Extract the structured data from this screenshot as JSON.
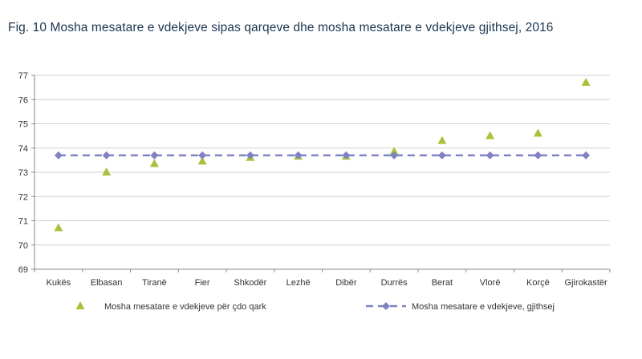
{
  "chart_data": {
    "type": "scatter",
    "title": "Fig. 10  Mosha mesatare e vdekjeve sipas qarqeve dhe mosha mesatare e vdekjeve gjithsej, 2016",
    "categories": [
      "Kukës",
      "Elbasan",
      "Tiranë",
      "Fier",
      "Shkodër",
      "Lezhë",
      "Dibër",
      "Durrës",
      "Berat",
      "Vlorë",
      "Korçë",
      "Gjirokastër"
    ],
    "ylim": [
      69,
      77
    ],
    "yticks": [
      69,
      70,
      71,
      72,
      73,
      74,
      75,
      76,
      77
    ],
    "grid": true,
    "legend_position": "bottom",
    "series": [
      {
        "name": "Mosha mesatare e vdekjeve për çdo qark",
        "marker": "triangle",
        "color": "#a6c33a",
        "values": [
          70.7,
          73.0,
          73.35,
          73.45,
          73.6,
          73.65,
          73.65,
          73.85,
          74.3,
          74.5,
          74.6,
          76.7
        ]
      },
      {
        "name": "Mosha mesatare e vdekjeve, gjithsej",
        "marker": "diamond",
        "line": "dashed",
        "color": "#7f83c2",
        "values": [
          73.7,
          73.7,
          73.7,
          73.7,
          73.7,
          73.7,
          73.7,
          73.7,
          73.7,
          73.7,
          73.7,
          73.7
        ]
      }
    ]
  }
}
